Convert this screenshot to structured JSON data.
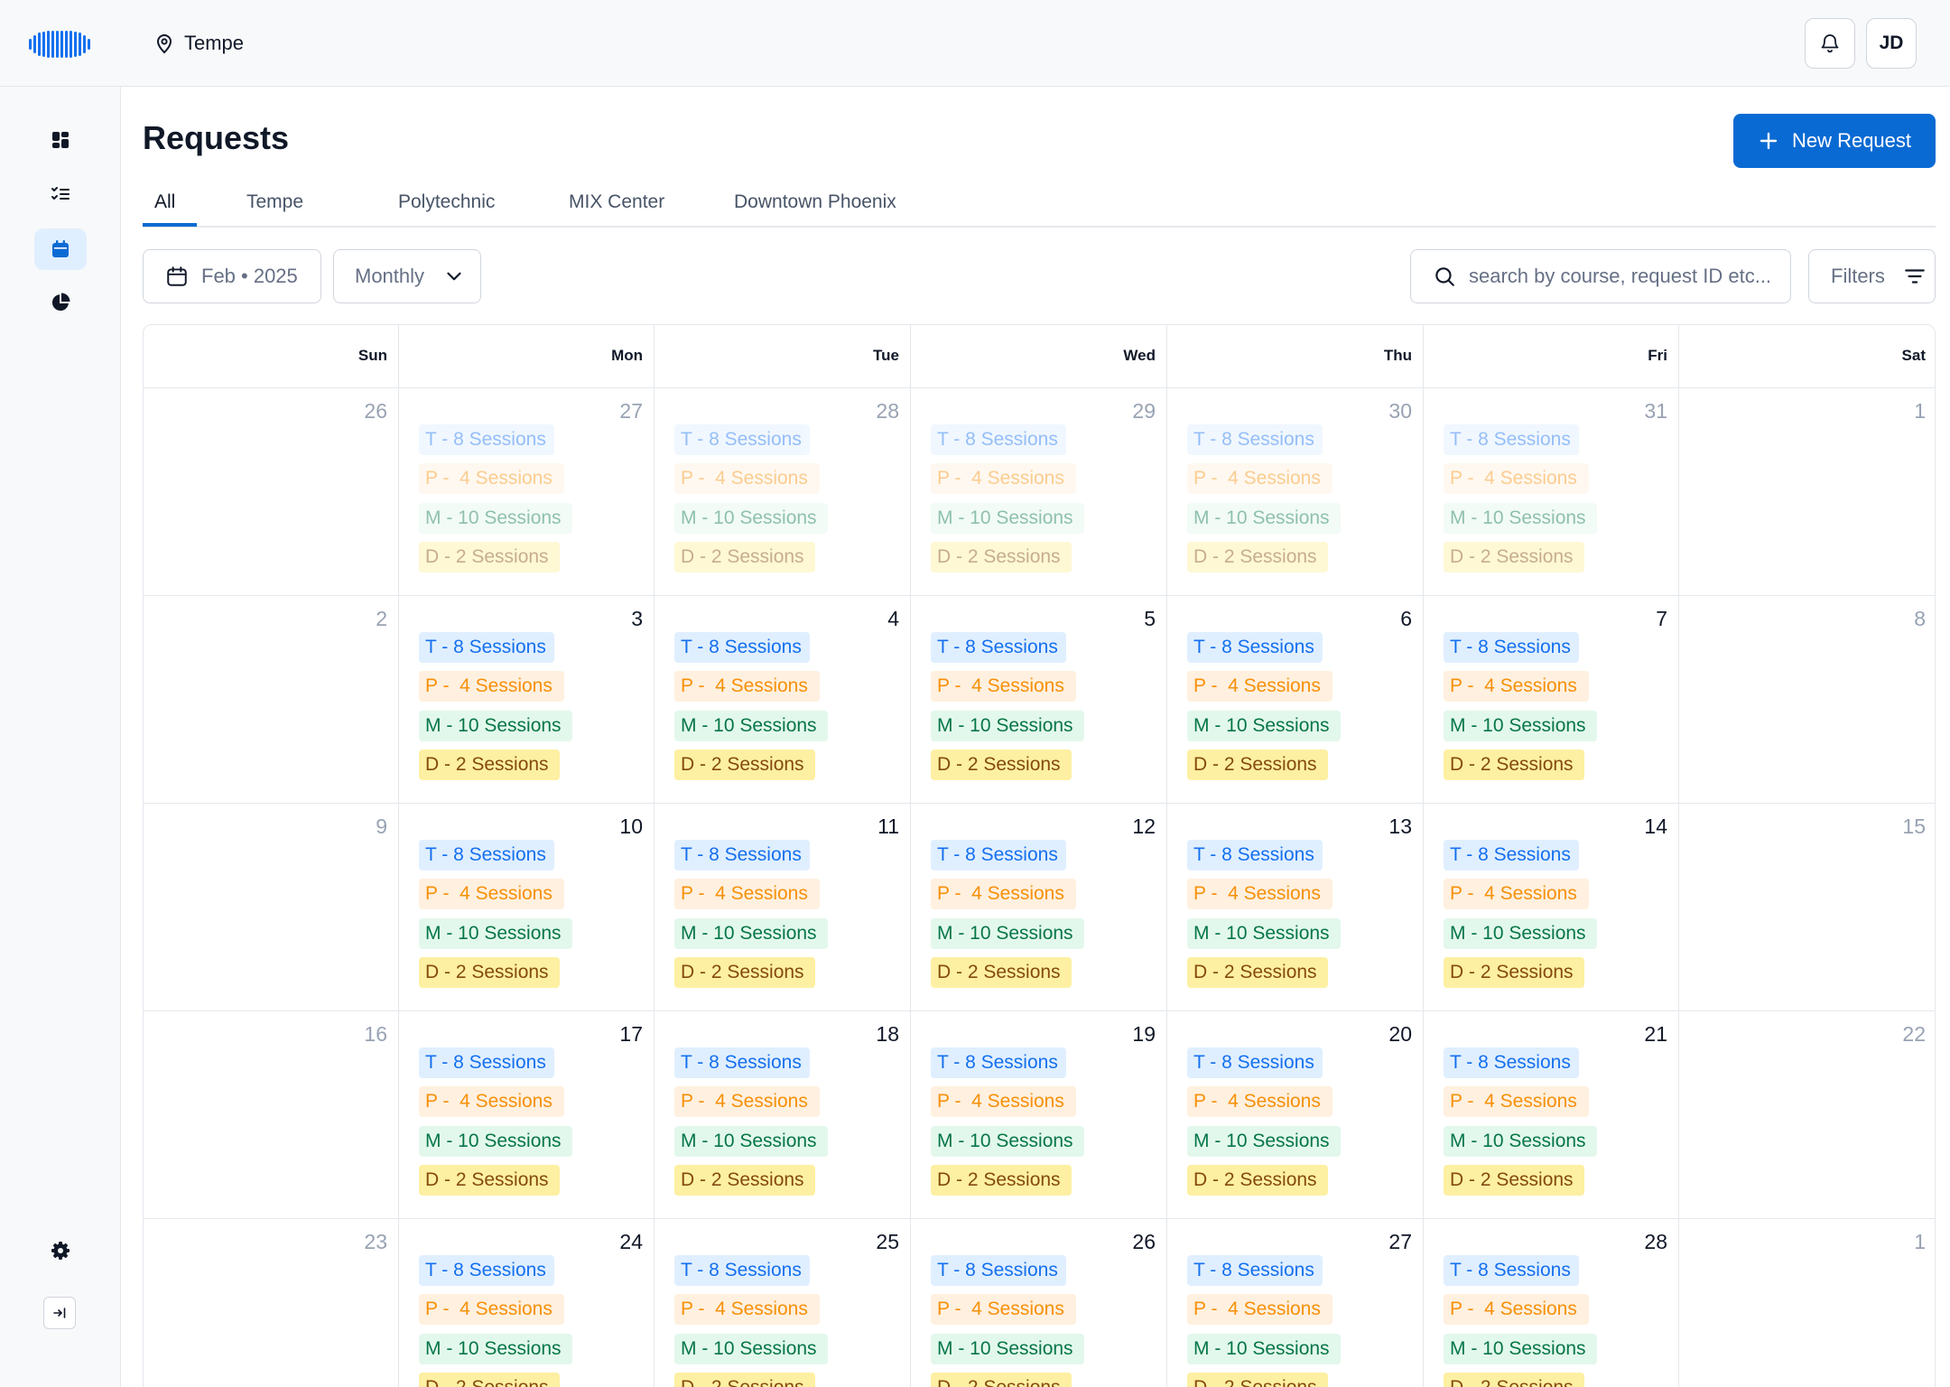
{
  "header": {
    "location": "Tempe",
    "user_initials": "JD"
  },
  "page": {
    "title": "Requests",
    "new_button_label": "New Request"
  },
  "tabs": [
    {
      "label": "All",
      "active": true
    },
    {
      "label": "Tempe",
      "active": false
    },
    {
      "label": "Polytechnic",
      "active": false
    },
    {
      "label": "MIX Center",
      "active": false
    },
    {
      "label": "Downtown Phoenix",
      "active": false
    }
  ],
  "controls": {
    "date_value": "Feb • 2025",
    "view_value": "Monthly",
    "search_placeholder": "search by course, request ID etc...",
    "filters_label": "Filters"
  },
  "colors": {
    "accent": "#0a6ad3",
    "active_nav_bg": "#e0efff"
  },
  "calendar": {
    "weekdays": [
      "Sun",
      "Mon",
      "Tue",
      "Wed",
      "Thu",
      "Fri",
      "Sat"
    ],
    "session_types": [
      {
        "label": "T - 8 Sessions",
        "text_color": "#1570ef",
        "bg_color": "#e0efff"
      },
      {
        "label": "P -  4 Sessions",
        "text_color": "#f79009",
        "bg_color": "#fff0df"
      },
      {
        "label": "M - 10 Sessions",
        "text_color": "#067647",
        "bg_color": "#e3f8ec"
      },
      {
        "label": "D - 2 Sessions",
        "text_color": "#854a0e",
        "bg_color": "#fdf0a2"
      }
    ],
    "weeks": [
      [
        {
          "day": "26",
          "in_month": false,
          "has_sessions": false
        },
        {
          "day": "27",
          "in_month": false,
          "has_sessions": true
        },
        {
          "day": "28",
          "in_month": false,
          "has_sessions": true
        },
        {
          "day": "29",
          "in_month": false,
          "has_sessions": true
        },
        {
          "day": "30",
          "in_month": false,
          "has_sessions": true
        },
        {
          "day": "31",
          "in_month": false,
          "has_sessions": true
        },
        {
          "day": "1",
          "in_month": false,
          "has_sessions": false
        }
      ],
      [
        {
          "day": "2",
          "in_month": false,
          "has_sessions": false
        },
        {
          "day": "3",
          "in_month": true,
          "has_sessions": true
        },
        {
          "day": "4",
          "in_month": true,
          "has_sessions": true
        },
        {
          "day": "5",
          "in_month": true,
          "has_sessions": true
        },
        {
          "day": "6",
          "in_month": true,
          "has_sessions": true
        },
        {
          "day": "7",
          "in_month": true,
          "has_sessions": true
        },
        {
          "day": "8",
          "in_month": false,
          "has_sessions": false
        }
      ],
      [
        {
          "day": "9",
          "in_month": false,
          "has_sessions": false
        },
        {
          "day": "10",
          "in_month": true,
          "has_sessions": true
        },
        {
          "day": "11",
          "in_month": true,
          "has_sessions": true
        },
        {
          "day": "12",
          "in_month": true,
          "has_sessions": true
        },
        {
          "day": "13",
          "in_month": true,
          "has_sessions": true
        },
        {
          "day": "14",
          "in_month": true,
          "has_sessions": true
        },
        {
          "day": "15",
          "in_month": false,
          "has_sessions": false
        }
      ],
      [
        {
          "day": "16",
          "in_month": false,
          "has_sessions": false
        },
        {
          "day": "17",
          "in_month": true,
          "has_sessions": true
        },
        {
          "day": "18",
          "in_month": true,
          "has_sessions": true
        },
        {
          "day": "19",
          "in_month": true,
          "has_sessions": true
        },
        {
          "day": "20",
          "in_month": true,
          "has_sessions": true
        },
        {
          "day": "21",
          "in_month": true,
          "has_sessions": true
        },
        {
          "day": "22",
          "in_month": false,
          "has_sessions": false
        }
      ],
      [
        {
          "day": "23",
          "in_month": false,
          "has_sessions": false
        },
        {
          "day": "24",
          "in_month": true,
          "has_sessions": true
        },
        {
          "day": "25",
          "in_month": true,
          "has_sessions": true
        },
        {
          "day": "26",
          "in_month": true,
          "has_sessions": true
        },
        {
          "day": "27",
          "in_month": true,
          "has_sessions": true
        },
        {
          "day": "28",
          "in_month": true,
          "has_sessions": true
        },
        {
          "day": "1",
          "in_month": false,
          "has_sessions": false
        }
      ]
    ]
  }
}
